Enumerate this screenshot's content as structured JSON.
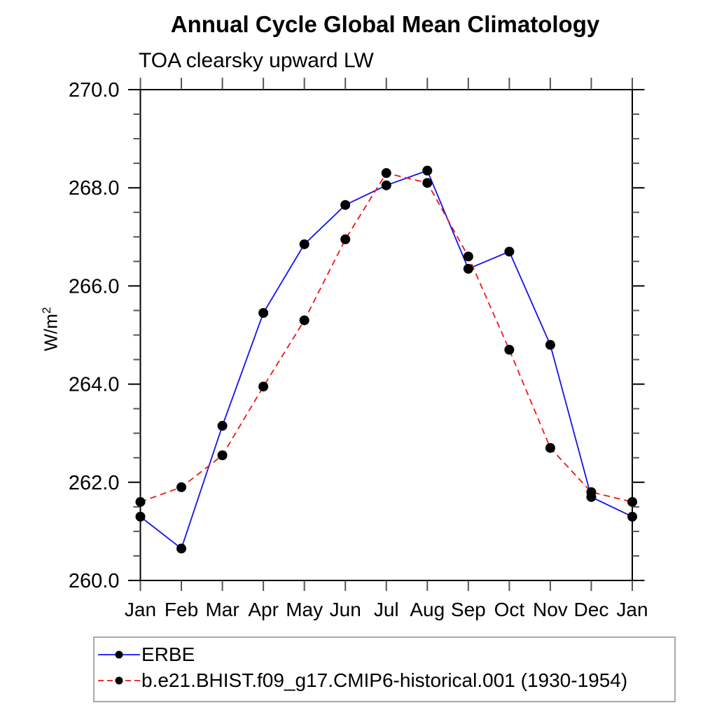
{
  "chart_data": {
    "type": "line",
    "title": "Annual Cycle Global Mean Climatology",
    "subtitle": "TOA clearsky upward LW",
    "ylabel": "W/m",
    "ylabel_exponent": "2",
    "categories": [
      "Jan",
      "Feb",
      "Mar",
      "Apr",
      "May",
      "Jun",
      "Jul",
      "Aug",
      "Sep",
      "Oct",
      "Nov",
      "Dec",
      "Jan"
    ],
    "ylim": [
      260.0,
      270.0
    ],
    "ytick_major_values": [
      260,
      262,
      264,
      266,
      268,
      270
    ],
    "ytick_major_labels": [
      "260.0",
      "262.0",
      "264.0",
      "266.0",
      "268.0",
      "270.0"
    ],
    "ytick_minor_step": 0.5,
    "grid": false,
    "legend_position": "bottom-left",
    "axis_color": "#000000",
    "tick_color": "#555555",
    "series": [
      {
        "name": "ERBE",
        "line_color": "#1212ee",
        "line_style": "solid",
        "marker": "filled-circle",
        "marker_color": "#000000",
        "values": [
          261.3,
          260.65,
          263.15,
          265.45,
          266.85,
          267.65,
          268.05,
          268.35,
          266.35,
          266.7,
          264.8,
          261.7,
          261.3
        ]
      },
      {
        "name": "b.e21.BHIST.f09_g17.CMIP6-historical.001 (1930-1954)",
        "line_color": "#f01515",
        "line_style": "dashed",
        "marker": "filled-circle",
        "marker_color": "#000000",
        "values": [
          261.6,
          261.9,
          262.55,
          263.95,
          265.3,
          266.95,
          268.3,
          268.1,
          266.6,
          264.7,
          262.7,
          261.8,
          261.6
        ]
      }
    ]
  }
}
